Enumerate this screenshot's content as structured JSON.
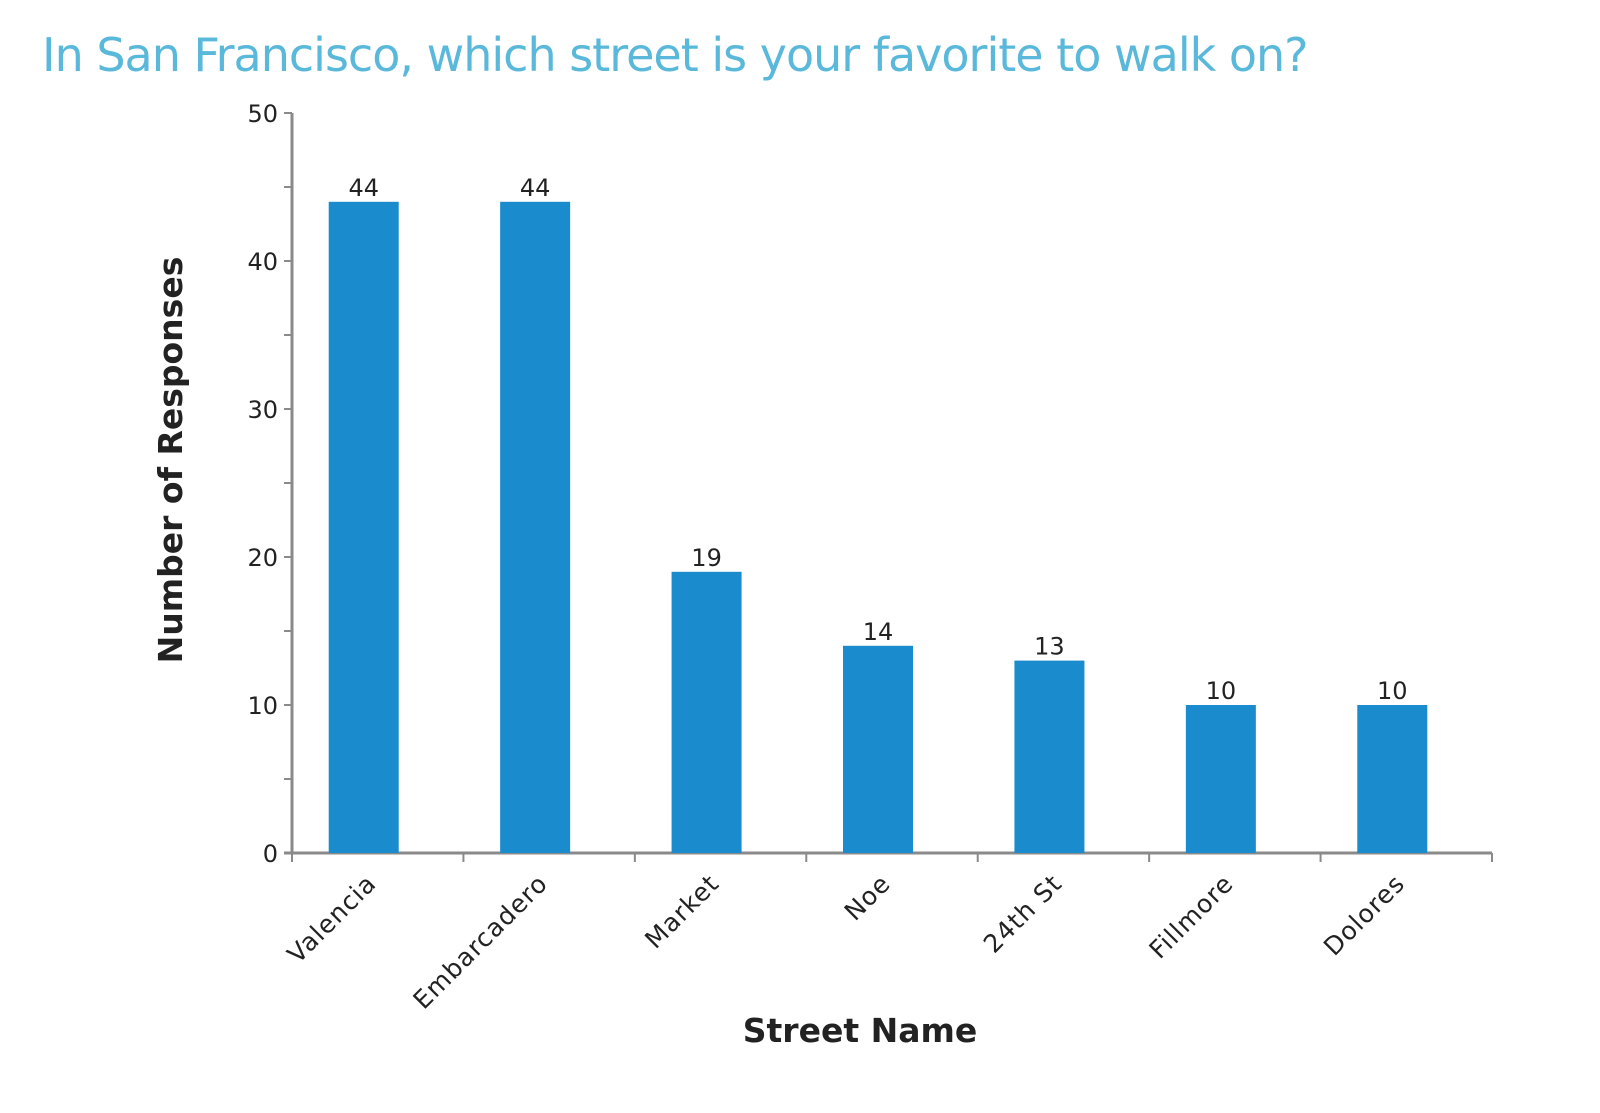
{
  "chart_data": {
    "type": "bar",
    "title": "In San Francisco, which street is your favorite to walk on?",
    "xlabel": "Street Name",
    "ylabel": "Number of Responses",
    "categories": [
      "Valencia",
      "Embarcadero",
      "Market",
      "Noe",
      "24th St",
      "Fillmore",
      "Dolores"
    ],
    "values": [
      44,
      44,
      19,
      14,
      13,
      10,
      10
    ],
    "ylim": [
      0,
      50
    ],
    "yticks": [
      "0",
      "10",
      "20",
      "30",
      "40",
      "50"
    ],
    "data_labels": [
      "44",
      "44",
      "19",
      "14",
      "13",
      "10",
      "10"
    ],
    "bar_color": "#1a8ccd",
    "title_color": "#5ab8db",
    "grid": false,
    "legend": "none"
  }
}
